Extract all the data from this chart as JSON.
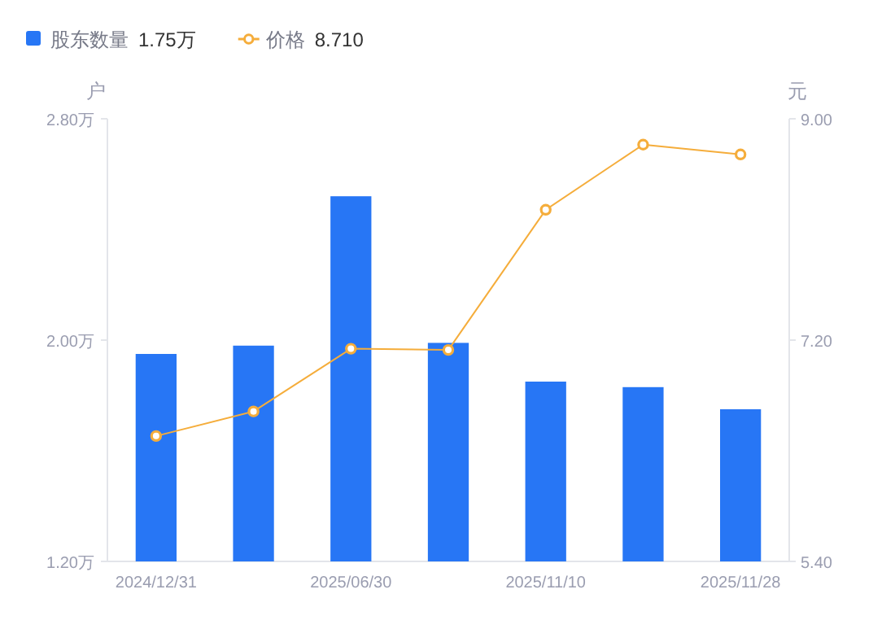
{
  "chart_data": {
    "type": "bar",
    "categories": [
      "2024/12/31",
      null,
      "2025/06/30",
      null,
      "2025/11/10",
      null,
      "2025/11/28"
    ],
    "series": [
      {
        "name": "股东数量",
        "color": "#2776f5",
        "values": [
          1.95,
          1.98,
          2.52,
          1.99,
          1.85,
          1.83,
          1.75
        ]
      },
      {
        "name": "价格",
        "type": "line",
        "axis": "y2",
        "color": "#f5ad3b",
        "values": [
          6.42,
          6.62,
          7.13,
          7.12,
          8.26,
          8.79,
          8.71
        ]
      }
    ],
    "ylabel": "户",
    "y2label": "元",
    "ylim": [
      1.2,
      2.8
    ],
    "yticks": [
      {
        "value": 1.2,
        "label": "1.20万"
      },
      {
        "value": 2.0,
        "label": "2.00万"
      },
      {
        "value": 2.8,
        "label": "2.80万"
      }
    ],
    "y2lim": [
      5.4,
      9.0
    ],
    "y2ticks": [
      {
        "value": 5.4,
        "label": "5.40"
      },
      {
        "value": 7.2,
        "label": "7.20"
      },
      {
        "value": 9.0,
        "label": "9.00"
      }
    ],
    "annotations": [
      "1.75万",
      "8.710"
    ],
    "legend": "top left",
    "marker": "circle",
    "grid": false
  }
}
